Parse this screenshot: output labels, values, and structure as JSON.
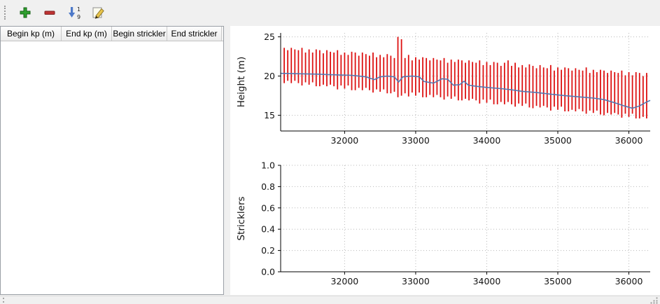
{
  "toolbar": {
    "add_label": "Add",
    "remove_label": "Remove",
    "sort_label": "Sort",
    "edit_label": "Edit",
    "sort_digit_top": "1",
    "sort_digit_bottom": "9"
  },
  "table": {
    "columns": [
      {
        "key": "begin_kp",
        "label": "Begin kp (m)"
      },
      {
        "key": "end_kp",
        "label": "End kp (m)"
      },
      {
        "key": "begin_strickler",
        "label": "Begin strickler"
      },
      {
        "key": "end_strickler",
        "label": "End strickler"
      }
    ],
    "rows": []
  },
  "chart_data": [
    {
      "type": "line+errorbar",
      "title": "",
      "xlabel": "",
      "ylabel": "Height (m)",
      "xlim": [
        31100,
        36300
      ],
      "ylim": [
        13,
        25.5
      ],
      "xticks": [
        32000,
        33000,
        34000,
        35000,
        36000
      ],
      "xtick_labels": [
        "32000",
        "33000",
        "34000",
        "35000",
        "36000"
      ],
      "yticks": [
        15,
        20,
        25
      ],
      "ytick_labels": [
        "15",
        "20",
        "25"
      ],
      "grid": "dotted",
      "legend": "none",
      "bar_color": "#dd1111",
      "line_color": "#5578b0",
      "bars": [
        [
          31150,
          19.1,
          23.6
        ],
        [
          31200,
          19.4,
          23.3
        ],
        [
          31250,
          19.1,
          23.6
        ],
        [
          31300,
          19.4,
          23.4
        ],
        [
          31350,
          19.1,
          23.3
        ],
        [
          31400,
          18.8,
          23.6
        ],
        [
          31450,
          19.2,
          23.0
        ],
        [
          31500,
          18.9,
          23.4
        ],
        [
          31550,
          19.2,
          23.0
        ],
        [
          31600,
          18.7,
          23.4
        ],
        [
          31650,
          18.7,
          23.3
        ],
        [
          31700,
          18.9,
          22.9
        ],
        [
          31750,
          18.7,
          23.3
        ],
        [
          31800,
          18.9,
          23.1
        ],
        [
          31850,
          18.7,
          23.0
        ],
        [
          31900,
          18.3,
          23.3
        ],
        [
          31950,
          18.8,
          22.7
        ],
        [
          32000,
          18.4,
          23.0
        ],
        [
          32050,
          18.8,
          22.7
        ],
        [
          32100,
          18.2,
          23.1
        ],
        [
          32150,
          18.2,
          23.0
        ],
        [
          32200,
          18.5,
          22.6
        ],
        [
          32250,
          18.2,
          23.0
        ],
        [
          32300,
          18.5,
          22.8
        ],
        [
          32350,
          18.2,
          22.6
        ],
        [
          32400,
          17.9,
          23.0
        ],
        [
          32450,
          18.3,
          22.4
        ],
        [
          32500,
          18.0,
          22.7
        ],
        [
          32550,
          18.3,
          22.4
        ],
        [
          32600,
          17.8,
          22.8
        ],
        [
          32650,
          17.8,
          22.6
        ],
        [
          32700,
          18.0,
          22.3
        ],
        [
          32750,
          17.3,
          25.0
        ],
        [
          32800,
          17.5,
          24.7
        ],
        [
          32850,
          17.8,
          22.3
        ],
        [
          32900,
          17.4,
          22.7
        ],
        [
          32950,
          17.9,
          22.0
        ],
        [
          33000,
          17.5,
          22.4
        ],
        [
          33050,
          17.9,
          22.1
        ],
        [
          33100,
          17.3,
          22.4
        ],
        [
          33150,
          17.3,
          22.3
        ],
        [
          33200,
          17.6,
          22.0
        ],
        [
          33250,
          17.3,
          22.3
        ],
        [
          33300,
          17.6,
          22.1
        ],
        [
          33350,
          17.3,
          22.0
        ],
        [
          33400,
          17.0,
          22.3
        ],
        [
          33450,
          17.4,
          21.7
        ],
        [
          33500,
          17.1,
          22.1
        ],
        [
          33550,
          17.4,
          21.8
        ],
        [
          33600,
          16.9,
          22.1
        ],
        [
          33650,
          16.9,
          22.0
        ],
        [
          33700,
          17.1,
          21.7
        ],
        [
          33750,
          16.9,
          22.0
        ],
        [
          33800,
          17.1,
          21.8
        ],
        [
          33850,
          16.9,
          21.7
        ],
        [
          33900,
          16.5,
          22.0
        ],
        [
          33950,
          17.0,
          21.4
        ],
        [
          34000,
          16.6,
          21.8
        ],
        [
          34050,
          17.0,
          21.4
        ],
        [
          34100,
          16.4,
          21.8
        ],
        [
          34150,
          16.4,
          21.7
        ],
        [
          34200,
          16.7,
          21.3
        ],
        [
          34250,
          16.4,
          21.7
        ],
        [
          34300,
          16.7,
          22.0
        ],
        [
          34350,
          16.4,
          21.3
        ],
        [
          34400,
          16.1,
          21.7
        ],
        [
          34450,
          16.5,
          21.1
        ],
        [
          34500,
          16.2,
          21.4
        ],
        [
          34550,
          16.5,
          21.1
        ],
        [
          34600,
          16.0,
          21.5
        ],
        [
          34650,
          15.9,
          21.3
        ],
        [
          34700,
          16.2,
          21.0
        ],
        [
          34750,
          16.0,
          21.4
        ],
        [
          34800,
          16.2,
          21.1
        ],
        [
          34850,
          16.0,
          21.0
        ],
        [
          34900,
          15.6,
          21.4
        ],
        [
          34950,
          16.1,
          20.7
        ],
        [
          35000,
          15.7,
          21.1
        ],
        [
          35050,
          16.1,
          20.8
        ],
        [
          35100,
          15.5,
          21.1
        ],
        [
          35150,
          15.5,
          21.0
        ],
        [
          35200,
          15.7,
          20.7
        ],
        [
          35250,
          15.5,
          21.0
        ],
        [
          35300,
          15.8,
          20.8
        ],
        [
          35350,
          15.5,
          20.7
        ],
        [
          35400,
          15.2,
          21.1
        ],
        [
          35450,
          15.6,
          20.4
        ],
        [
          35500,
          15.3,
          20.8
        ],
        [
          35550,
          15.6,
          20.5
        ],
        [
          35600,
          15.1,
          20.8
        ],
        [
          35650,
          15.0,
          20.7
        ],
        [
          35700,
          15.3,
          20.4
        ],
        [
          35750,
          15.1,
          20.7
        ],
        [
          35800,
          15.3,
          20.5
        ],
        [
          35850,
          15.1,
          20.4
        ],
        [
          35900,
          14.7,
          20.7
        ],
        [
          35950,
          15.2,
          20.1
        ],
        [
          36000,
          14.8,
          20.5
        ],
        [
          36050,
          15.2,
          20.1
        ],
        [
          36100,
          14.6,
          20.5
        ],
        [
          36150,
          14.6,
          20.4
        ],
        [
          36200,
          14.8,
          20.0
        ],
        [
          36250,
          14.6,
          20.4
        ]
      ],
      "line": {
        "x": [
          31100,
          31300,
          31600,
          31900,
          32100,
          32300,
          32420,
          32500,
          32600,
          32700,
          32760,
          32820,
          32950,
          33050,
          33120,
          33250,
          33370,
          33450,
          33530,
          33620,
          33680,
          33740,
          33850,
          34000,
          34200,
          34350,
          34500,
          34700,
          34900,
          35100,
          35300,
          35500,
          35650,
          35800,
          35950,
          36050,
          36150,
          36250,
          36300
        ],
        "y": [
          20.35,
          20.3,
          20.25,
          20.15,
          20.1,
          19.9,
          19.55,
          19.9,
          20.0,
          19.9,
          19.25,
          19.9,
          20.0,
          19.9,
          19.3,
          19.1,
          19.65,
          19.6,
          18.85,
          18.9,
          19.35,
          18.85,
          18.7,
          18.55,
          18.4,
          18.25,
          18.05,
          17.9,
          17.7,
          17.5,
          17.35,
          17.2,
          17.0,
          16.6,
          16.15,
          15.9,
          16.2,
          16.7,
          16.9
        ]
      }
    },
    {
      "type": "line",
      "title": "",
      "xlabel": "",
      "ylabel": "Stricklers",
      "xlim": [
        31100,
        36300
      ],
      "ylim": [
        0,
        1
      ],
      "xticks": [
        32000,
        33000,
        34000,
        35000,
        36000
      ],
      "xtick_labels": [
        "32000",
        "33000",
        "34000",
        "35000",
        "36000"
      ],
      "yticks": [
        0,
        0.2,
        0.4,
        0.6,
        0.8,
        1
      ],
      "ytick_labels": [
        "0.0",
        "0.2",
        "0.4",
        "0.6",
        "0.8",
        "1.0"
      ],
      "grid": "dotted",
      "legend": "none",
      "series": []
    }
  ]
}
